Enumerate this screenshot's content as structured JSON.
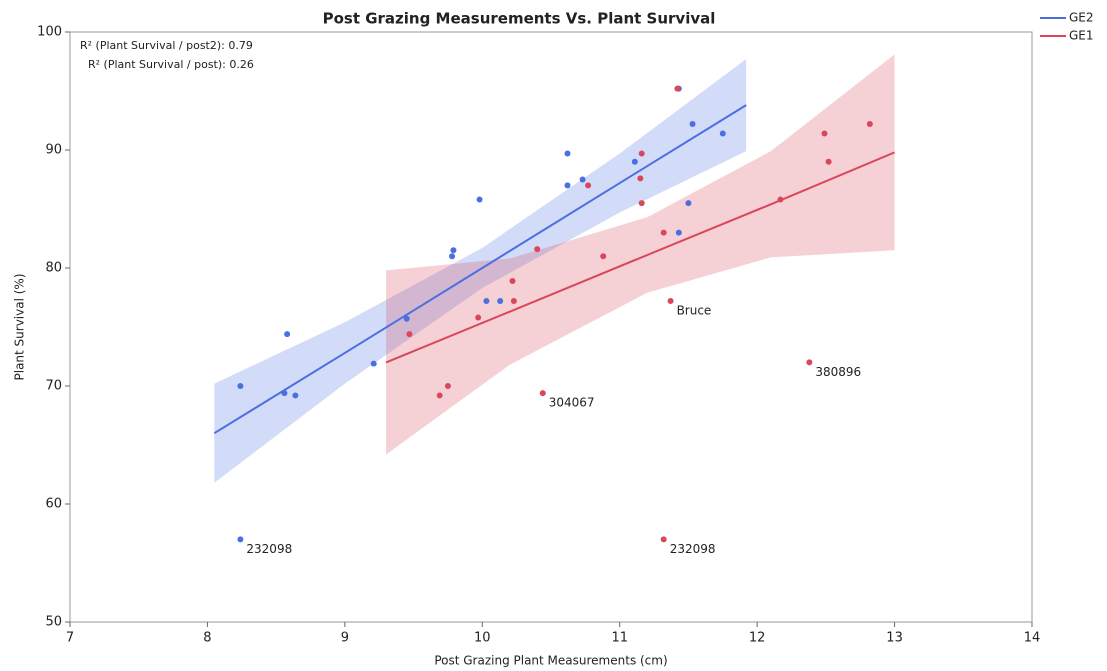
{
  "chart_data": {
    "type": "scatter",
    "title": "Post Grazing Measurements Vs. Plant Survival",
    "x_label": "Post Grazing Plant Measurements (cm)",
    "y_label": "Plant Survival (%)",
    "annotations": [
      "R² (Plant Survival / post2): 0.79",
      "R² (Plant Survival / post): 0.26"
    ],
    "xlim": [
      7,
      14
    ],
    "xticks": [
      7,
      8,
      9,
      10,
      11,
      12,
      13,
      14
    ],
    "ylim": [
      50,
      100
    ],
    "yticks": [
      50,
      60,
      70,
      80,
      90,
      100
    ],
    "legend": "right",
    "series": [
      {
        "name": "GE2",
        "color": "#4a6fe0",
        "x": [
          8.24,
          8.58,
          8.56,
          8.64,
          9.21,
          9.45,
          9.79,
          9.78,
          9.98,
          10.03,
          10.13,
          10.62,
          10.62,
          10.73,
          11.11,
          11.43,
          11.53,
          11.5,
          11.43,
          11.75,
          8.24
        ],
        "values": [
          70.0,
          74.4,
          69.4,
          69.2,
          71.9,
          75.7,
          81.5,
          81.0,
          85.8,
          77.2,
          77.2,
          89.7,
          87.0,
          87.5,
          89.0,
          95.2,
          92.2,
          85.5,
          83.0,
          91.4,
          57.0
        ],
        "point_labels": [
          null,
          null,
          null,
          null,
          null,
          null,
          null,
          null,
          null,
          null,
          null,
          null,
          null,
          null,
          null,
          null,
          null,
          null,
          null,
          null,
          "232098"
        ],
        "fit": {
          "x": [
            8.05,
            9,
            10,
            11,
            11.92
          ],
          "y": [
            66,
            72.8,
            80.0,
            87.2,
            93.8
          ],
          "lower": [
            61.8,
            70.2,
            78.3,
            84.7,
            89.9
          ],
          "upper": [
            70.2,
            75.4,
            81.7,
            89.7,
            97.7
          ]
        }
      },
      {
        "name": "GE1",
        "color": "#d9475a",
        "x": [
          9.47,
          9.75,
          9.69,
          9.97,
          10.22,
          10.23,
          10.4,
          10.44,
          10.77,
          10.88,
          11.16,
          11.15,
          11.16,
          11.32,
          11.37,
          11.42,
          11.32,
          12.17,
          12.38,
          12.49,
          12.52,
          12.82
        ],
        "values": [
          74.4,
          70.0,
          69.2,
          75.8,
          78.9,
          77.2,
          81.6,
          69.4,
          87.0,
          81.0,
          89.7,
          87.6,
          85.5,
          83.0,
          77.2,
          95.2,
          57.0,
          85.8,
          72.0,
          91.4,
          89.0,
          92.2
        ],
        "point_labels": [
          null,
          null,
          null,
          null,
          null,
          null,
          null,
          "304067",
          null,
          null,
          null,
          null,
          null,
          null,
          "Bruce",
          null,
          "232098",
          null,
          "380896",
          null,
          null,
          null
        ],
        "fit": {
          "x": [
            9.3,
            10.2,
            11.2,
            12.1,
            13
          ],
          "y": [
            72,
            76.3,
            81.1,
            85.4,
            89.8
          ],
          "lower": [
            64.2,
            71.8,
            77.9,
            80.9,
            81.5
          ],
          "upper": [
            79.8,
            80.8,
            84.3,
            89.9,
            98.1
          ]
        }
      }
    ]
  }
}
